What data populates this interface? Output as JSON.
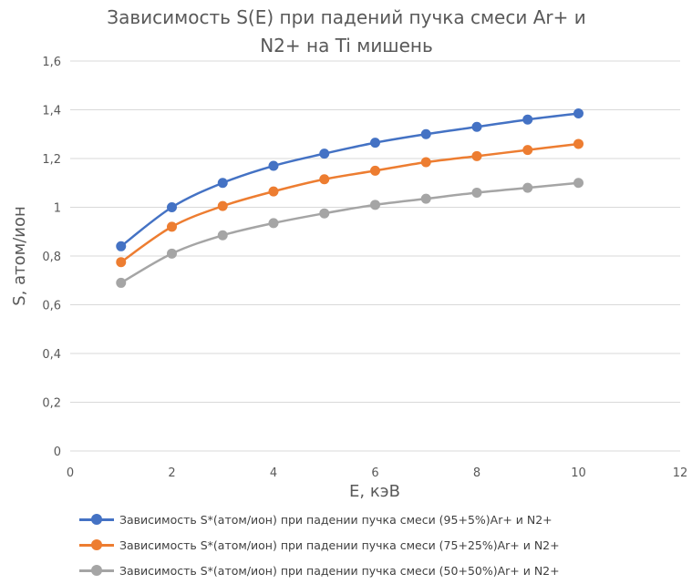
{
  "chart_data": {
    "type": "line",
    "title": "Зависимость S(E) при падений пучка смеси Ar+ и N2+ на Ti мишень",
    "title_lines": [
      "Зависимость S(E) при падений пучка смеси Ar+ и",
      "N2+ на Ti мишень"
    ],
    "xlabel": "E, кэВ",
    "ylabel": "S, атом/ион",
    "xlim": [
      0,
      12
    ],
    "ylim": [
      0,
      1.6
    ],
    "x_ticks": [
      "0",
      "2",
      "4",
      "6",
      "8",
      "10",
      "12"
    ],
    "y_ticks": [
      "0",
      "0,2",
      "0,4",
      "0,6",
      "0,8",
      "1",
      "1,2",
      "1,4",
      "1,6"
    ],
    "grid": "horizontal",
    "legend_position": "bottom",
    "x": [
      1,
      2,
      3,
      4,
      5,
      6,
      7,
      8,
      9,
      10
    ],
    "series": [
      {
        "name": "Зависимость S*(атом/ион) при падении пучка смеси (95+5%)Ar+ и N2+",
        "color": "#4472c4",
        "values": [
          0.84,
          1.0,
          1.1,
          1.17,
          1.22,
          1.265,
          1.3,
          1.33,
          1.36,
          1.385
        ]
      },
      {
        "name": "Зависимость S*(атом/ион) при падении пучка смеси  (75+25%)Ar+ и N2+",
        "color": "#ed7d31",
        "values": [
          0.775,
          0.92,
          1.005,
          1.065,
          1.115,
          1.15,
          1.185,
          1.21,
          1.235,
          1.26
        ]
      },
      {
        "name": "Зависимость S*(атом/ион) при падении пучка смеси (50+50%)Ar+ и N2+",
        "color": "#a5a5a5",
        "values": [
          0.69,
          0.81,
          0.885,
          0.935,
          0.975,
          1.01,
          1.035,
          1.06,
          1.08,
          1.1
        ]
      }
    ]
  }
}
